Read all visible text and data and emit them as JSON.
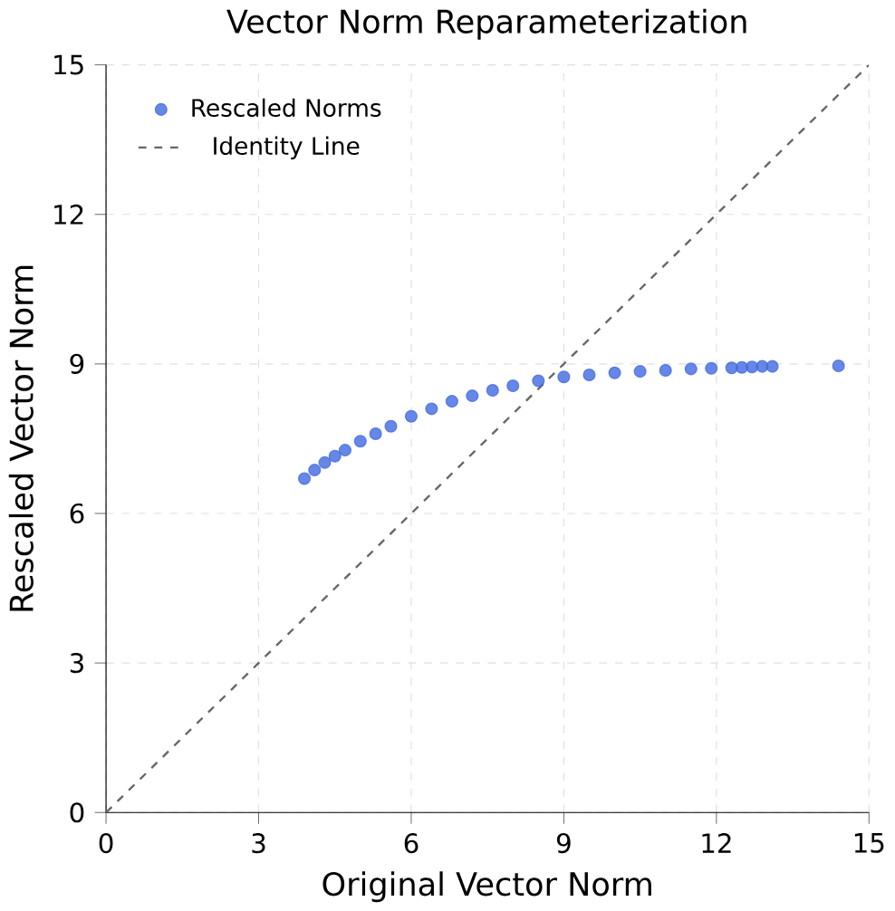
{
  "chart_data": {
    "type": "scatter",
    "title": "Vector Norm Reparameterization",
    "xlabel": "Original Vector Norm",
    "ylabel": "Rescaled Vector Norm",
    "xlim": [
      0,
      15
    ],
    "ylim": [
      0,
      15
    ],
    "xticks": [
      0,
      3,
      6,
      9,
      12,
      15
    ],
    "yticks": [
      0,
      3,
      6,
      9,
      12,
      15
    ],
    "grid": true,
    "legend": "top left",
    "marker": "circle",
    "series": [
      {
        "name": "Rescaled Norms",
        "color": "#4169e1",
        "x": [
          3.9,
          4.1,
          4.3,
          4.5,
          4.7,
          5.0,
          5.3,
          5.6,
          6.0,
          6.4,
          6.8,
          7.2,
          7.6,
          8.0,
          8.5,
          9.0,
          9.5,
          10.0,
          10.5,
          11.0,
          11.5,
          11.9,
          12.3,
          12.5,
          12.7,
          12.9,
          13.1,
          14.4
        ],
        "values": [
          6.7,
          6.87,
          7.02,
          7.15,
          7.27,
          7.45,
          7.6,
          7.75,
          7.95,
          8.1,
          8.25,
          8.36,
          8.47,
          8.56,
          8.66,
          8.74,
          8.78,
          8.82,
          8.85,
          8.87,
          8.9,
          8.91,
          8.92,
          8.93,
          8.94,
          8.95,
          8.95,
          8.96
        ]
      },
      {
        "name": "Identity Line",
        "type": "line",
        "color": "#666666",
        "line_style": "dashed",
        "marker": "none",
        "x": [
          0,
          15
        ],
        "values": [
          0,
          15
        ]
      }
    ]
  }
}
